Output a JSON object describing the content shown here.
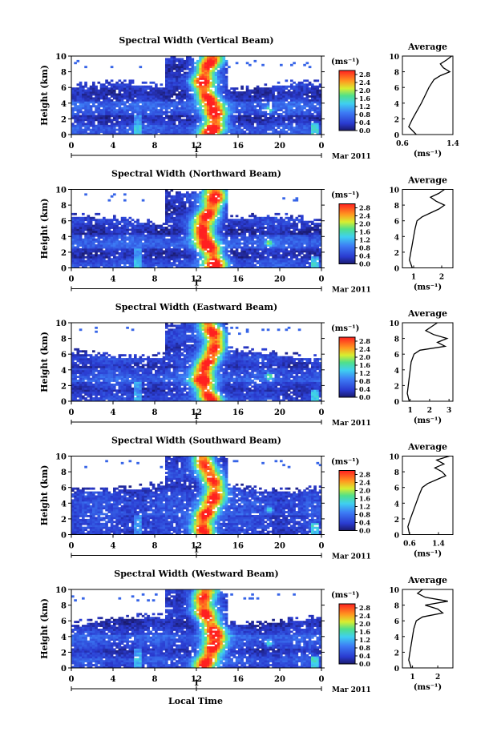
{
  "figure": {
    "xlabel": "Local Time",
    "date_label": "Mar 2011",
    "day_label": "1",
    "ylabel": "Height (km)",
    "cb_unit": "(ms⁻¹)",
    "avg_title": "Average",
    "avg_xlabel": "(ms⁻¹)"
  },
  "chart_data": [
    {
      "type": "heatmap",
      "title": "Spectral Width (Vertical Beam)",
      "x_ticks": [
        "0",
        "4",
        "8",
        "12",
        "16",
        "20",
        "0"
      ],
      "xlim": [
        0,
        24
      ],
      "y_ticks": [
        "0",
        "2",
        "4",
        "6",
        "8",
        "10"
      ],
      "ylim": [
        0,
        10
      ],
      "colorbar": {
        "ticks": [
          "0.0",
          "0.4",
          "0.8",
          "1.2",
          "1.6",
          "2.0",
          "2.4",
          "2.8"
        ],
        "range": [
          0,
          3.0
        ]
      },
      "average_profile": {
        "type": "line",
        "x_ticks": [
          "0.6",
          "1.4"
        ],
        "xlim": [
          0.6,
          1.4
        ],
        "y_ticks": [
          "0",
          "2",
          "4",
          "6",
          "8",
          "10"
        ],
        "ylim": [
          0,
          10
        ],
        "height_km": [
          0,
          1,
          2,
          3,
          4,
          5,
          6,
          6.5,
          7,
          7.5,
          8,
          8.5,
          9,
          9.5,
          10
        ],
        "values": [
          0.82,
          0.7,
          0.76,
          0.83,
          0.9,
          0.96,
          1.02,
          1.06,
          1.1,
          1.2,
          1.35,
          1.25,
          1.2,
          1.3,
          1.38
        ]
      }
    },
    {
      "type": "heatmap",
      "title": "Spectral Width (Northward Beam)",
      "x_ticks": [
        "0",
        "4",
        "8",
        "12",
        "16",
        "20",
        "0"
      ],
      "xlim": [
        0,
        24
      ],
      "y_ticks": [
        "0",
        "2",
        "4",
        "6",
        "8",
        "10"
      ],
      "ylim": [
        0,
        10
      ],
      "colorbar": {
        "ticks": [
          "0.0",
          "0.4",
          "0.8",
          "1.2",
          "1.6",
          "2.0",
          "2.4",
          "2.8"
        ],
        "range": [
          0,
          3.0
        ]
      },
      "average_profile": {
        "type": "line",
        "x_ticks": [
          "1",
          "2"
        ],
        "xlim": [
          0.6,
          2.4
        ],
        "y_ticks": [
          "0",
          "2",
          "4",
          "6",
          "8",
          "10"
        ],
        "ylim": [
          0,
          10
        ],
        "height_km": [
          0,
          1,
          2,
          3,
          4,
          5,
          6,
          6.5,
          7,
          7.5,
          8,
          8.5,
          9,
          9.5,
          10
        ],
        "values": [
          0.95,
          0.85,
          0.9,
          0.95,
          1.0,
          1.05,
          1.12,
          1.3,
          1.6,
          1.9,
          2.1,
          1.8,
          1.6,
          1.9,
          2.1
        ]
      }
    },
    {
      "type": "heatmap",
      "title": "Spectral Width (Eastward Beam)",
      "x_ticks": [
        "0",
        "4",
        "8",
        "12",
        "16",
        "20",
        "0"
      ],
      "xlim": [
        0,
        24
      ],
      "y_ticks": [
        "0",
        "2",
        "4",
        "6",
        "8",
        "10"
      ],
      "ylim": [
        0,
        10
      ],
      "colorbar": {
        "ticks": [
          "0.0",
          "0.4",
          "0.8",
          "1.2",
          "1.6",
          "2.0",
          "2.4",
          "2.8"
        ],
        "range": [
          0,
          3.0
        ]
      },
      "average_profile": {
        "type": "line",
        "x_ticks": [
          "1",
          "2",
          "3"
        ],
        "xlim": [
          0.6,
          3.2
        ],
        "y_ticks": [
          "0",
          "2",
          "4",
          "6",
          "8",
          "10"
        ],
        "ylim": [
          0,
          10
        ],
        "height_km": [
          0,
          1,
          2,
          3,
          4,
          5,
          6,
          6.5,
          7,
          7.5,
          8,
          8.5,
          9,
          9.5,
          10
        ],
        "values": [
          0.95,
          0.85,
          0.9,
          0.95,
          1.0,
          1.05,
          1.2,
          1.5,
          2.8,
          2.4,
          2.9,
          2.2,
          1.8,
          2.1,
          2.4
        ]
      }
    },
    {
      "type": "heatmap",
      "title": "Spectral Width (Southward Beam)",
      "x_ticks": [
        "0",
        "4",
        "8",
        "12",
        "16",
        "20",
        "0"
      ],
      "xlim": [
        0,
        24
      ],
      "y_ticks": [
        "0",
        "2",
        "4",
        "6",
        "8",
        "10"
      ],
      "ylim": [
        0,
        10
      ],
      "colorbar": {
        "ticks": [
          "0.0",
          "0.4",
          "0.8",
          "1.2",
          "1.6",
          "2.0",
          "2.4",
          "2.8"
        ],
        "range": [
          0,
          3.0
        ]
      },
      "average_profile": {
        "type": "line",
        "x_ticks": [
          "0.6",
          "1.4"
        ],
        "xlim": [
          0.4,
          1.8
        ],
        "y_ticks": [
          "0",
          "2",
          "4",
          "6",
          "8",
          "10"
        ],
        "ylim": [
          0,
          10
        ],
        "height_km": [
          0,
          1,
          2,
          3,
          4,
          5,
          6,
          6.5,
          7,
          7.5,
          8,
          8.5,
          9,
          9.5,
          10
        ],
        "values": [
          0.6,
          0.55,
          0.62,
          0.7,
          0.78,
          0.86,
          0.95,
          1.1,
          1.35,
          1.6,
          1.5,
          1.3,
          1.55,
          1.35,
          1.7
        ]
      }
    },
    {
      "type": "heatmap",
      "title": "Spectral Width (Westward Beam)",
      "x_ticks": [
        "0",
        "4",
        "8",
        "12",
        "16",
        "20",
        "0"
      ],
      "xlim": [
        0,
        24
      ],
      "y_ticks": [
        "0",
        "2",
        "4",
        "6",
        "8",
        "10"
      ],
      "ylim": [
        0,
        10
      ],
      "colorbar": {
        "ticks": [
          "0.0",
          "0.4",
          "0.8",
          "1.2",
          "1.6",
          "2.0",
          "2.4",
          "2.8"
        ],
        "range": [
          0,
          3.0
        ]
      },
      "average_profile": {
        "type": "line",
        "x_ticks": [
          "1",
          "2"
        ],
        "xlim": [
          0.6,
          2.6
        ],
        "y_ticks": [
          "0",
          "2",
          "4",
          "6",
          "8",
          "10"
        ],
        "ylim": [
          0,
          10
        ],
        "height_km": [
          0,
          1,
          2,
          3,
          4,
          5,
          6,
          6.5,
          7,
          7.5,
          8,
          8.5,
          9,
          9.5,
          10
        ],
        "values": [
          0.95,
          0.85,
          0.9,
          0.95,
          1.0,
          1.05,
          1.15,
          1.4,
          2.2,
          2.0,
          1.5,
          2.4,
          1.5,
          1.2,
          1.4
        ]
      }
    }
  ]
}
